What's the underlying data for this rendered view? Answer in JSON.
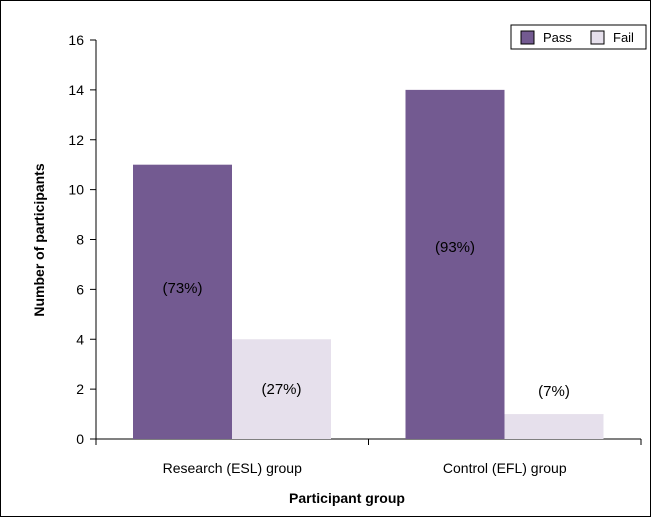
{
  "chart_data": {
    "type": "bar",
    "categories": [
      "Research (ESL) group",
      "Control (EFL) group"
    ],
    "series": [
      {
        "name": "Pass",
        "values": [
          11,
          14
        ],
        "labels": [
          "(73%)",
          "(93%)"
        ],
        "color": "#735a91"
      },
      {
        "name": "Fail",
        "values": [
          4,
          1
        ],
        "labels": [
          "(27%)",
          "(7%)"
        ],
        "color": "#e6e0ec"
      }
    ],
    "xlabel": "Participant group",
    "ylabel": "Number of participants",
    "ylim": [
      0,
      16
    ],
    "yticks": [
      "0",
      "2",
      "4",
      "6",
      "8",
      "10",
      "12",
      "14",
      "16"
    ],
    "grid": false,
    "legend_position": "top-right"
  }
}
